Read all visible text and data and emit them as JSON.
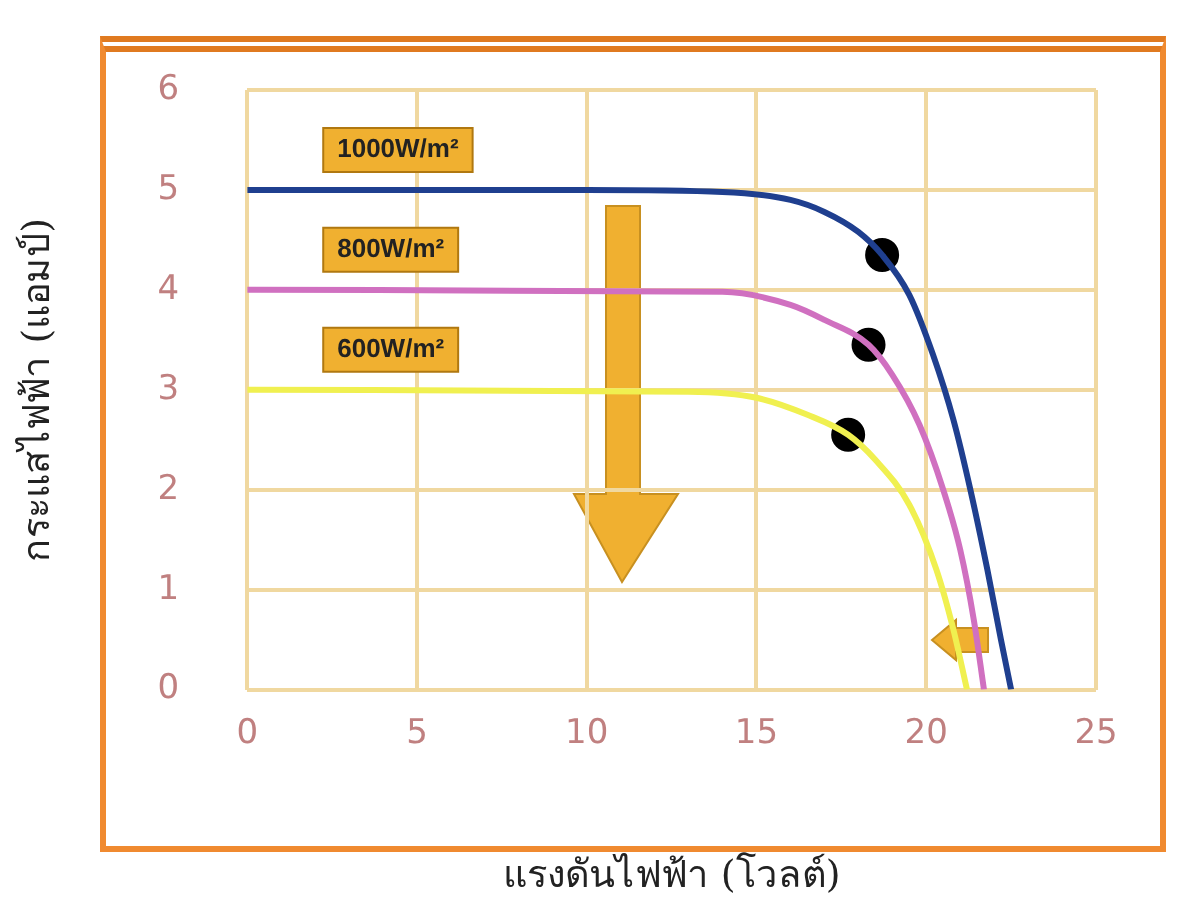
{
  "chart_data": {
    "type": "line",
    "xlabel": "แรงดันไฟฟ้า (โวลต์)",
    "ylabel": "กระแสไฟฟ้า (แอมป์)",
    "xlim": [
      0,
      25
    ],
    "ylim": [
      0,
      6
    ],
    "xticks": [
      0,
      5,
      10,
      15,
      20,
      25
    ],
    "yticks": [
      0,
      1,
      2,
      3,
      4,
      5,
      6
    ],
    "grid": true,
    "legend": false,
    "marker": "none",
    "line_style": "solid",
    "series": [
      {
        "name": "1000W/m²",
        "color": "#1f3f8f",
        "x": [
          0,
          10,
          14,
          16,
          17,
          18,
          18.7,
          19.5,
          20.2,
          20.8,
          21.3,
          21.8,
          22.2,
          22.5
        ],
        "values": [
          5,
          5,
          4.98,
          4.9,
          4.78,
          4.58,
          4.35,
          3.95,
          3.35,
          2.7,
          2,
          1.2,
          0.5,
          0
        ]
      },
      {
        "name": "800W/m²",
        "color": "#d070c0",
        "x": [
          0,
          14,
          16,
          17,
          18.3,
          19,
          19.8,
          20.5,
          21,
          21.4,
          21.7
        ],
        "values": [
          4,
          3.98,
          3.85,
          3.7,
          3.45,
          3.15,
          2.65,
          2,
          1.4,
          0.7,
          0
        ]
      },
      {
        "name": "600W/m²",
        "color": "#f0f050",
        "x": [
          0,
          13,
          15,
          16.5,
          17.7,
          18.5,
          19.5,
          20.3,
          20.8,
          21.2
        ],
        "values": [
          3,
          2.98,
          2.92,
          2.75,
          2.55,
          2.3,
          1.85,
          1.2,
          0.6,
          0
        ]
      },
      {
        "type": "scatter",
        "marker": "circle",
        "color": "#000000",
        "x": [
          18.7,
          18.3,
          17.7
        ],
        "values": [
          4.35,
          3.45,
          2.55
        ]
      }
    ]
  }
}
